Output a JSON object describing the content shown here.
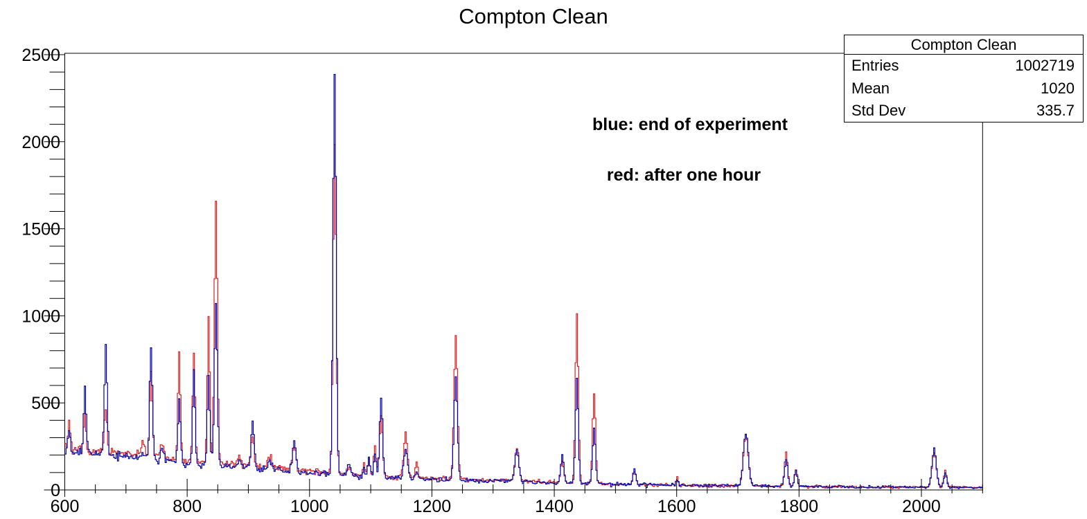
{
  "chart_data": {
    "type": "line",
    "title": "Compton Clean",
    "stats_box": {
      "title": "Compton Clean",
      "rows": [
        {
          "label": "Entries",
          "value": "1002719"
        },
        {
          "label": "Mean",
          "value": "1020"
        },
        {
          "label": "Std Dev",
          "value": "335.7"
        }
      ]
    },
    "annotations": [
      {
        "text": "blue: end of experiment"
      },
      {
        "text": "red: after one hour"
      }
    ],
    "xlim": [
      600,
      2100
    ],
    "ylim": [
      0,
      2500
    ],
    "x_major_ticks": [
      600,
      800,
      1000,
      1200,
      1400,
      1600,
      1800,
      2000
    ],
    "x_minor_step": 50,
    "y_major_ticks": [
      0,
      500,
      1000,
      1500,
      2000,
      2500
    ],
    "y_minor_step": 100,
    "grid": false,
    "legend_position": "none",
    "series": [
      {
        "name": "after one hour",
        "color": "#dd1f1f"
      },
      {
        "name": "end of experiment",
        "color": "#0000a8"
      }
    ],
    "bin_width": 2,
    "baseline_blue": [
      [
        600,
        220
      ],
      [
        640,
        206
      ],
      [
        680,
        196
      ],
      [
        720,
        186
      ],
      [
        760,
        174
      ],
      [
        800,
        152
      ],
      [
        840,
        143
      ],
      [
        880,
        135
      ],
      [
        920,
        122
      ],
      [
        960,
        108
      ],
      [
        1000,
        97
      ],
      [
        1050,
        88
      ],
      [
        1100,
        76
      ],
      [
        1150,
        68
      ],
      [
        1200,
        62
      ],
      [
        1250,
        56
      ],
      [
        1300,
        52
      ],
      [
        1350,
        47
      ],
      [
        1400,
        42
      ],
      [
        1450,
        38
      ],
      [
        1500,
        33
      ],
      [
        1550,
        29
      ],
      [
        1600,
        27
      ],
      [
        1650,
        25
      ],
      [
        1700,
        24
      ],
      [
        1750,
        22
      ],
      [
        1800,
        20
      ],
      [
        1850,
        18
      ],
      [
        1900,
        17
      ],
      [
        1950,
        16
      ],
      [
        2000,
        16
      ],
      [
        2050,
        15
      ],
      [
        2100,
        14
      ]
    ],
    "red_baseline_boost": {
      "max_factor": 1.09,
      "fade_start": 1150,
      "fade_end": 1450
    },
    "noise_model": "poisson",
    "peaks": [
      {
        "x": 607,
        "sigma": 2.0,
        "blue": 370,
        "red": 400
      },
      {
        "x": 633,
        "sigma": 2.0,
        "blue": 600,
        "red": 435
      },
      {
        "x": 667,
        "sigma": 2.2,
        "blue": 830,
        "red": 460
      },
      {
        "x": 727,
        "sigma": 3.0,
        "blue": 215,
        "red": 272
      },
      {
        "x": 741,
        "sigma": 2.2,
        "blue": 818,
        "red": 660
      },
      {
        "x": 759,
        "sigma": 3.0,
        "blue": 235,
        "red": 258
      },
      {
        "x": 787,
        "sigma": 2.0,
        "blue": 528,
        "red": 795
      },
      {
        "x": 811,
        "sigma": 2.0,
        "blue": 678,
        "red": 790
      },
      {
        "x": 835,
        "sigma": 2.0,
        "blue": 660,
        "red": 1007
      },
      {
        "x": 847,
        "sigma": 2.4,
        "blue": 1070,
        "red": 1655
      },
      {
        "x": 885,
        "sigma": 2.5,
        "blue": 170,
        "red": 195
      },
      {
        "x": 907,
        "sigma": 2.5,
        "blue": 395,
        "red": 308
      },
      {
        "x": 935,
        "sigma": 2.8,
        "blue": 168,
        "red": 200
      },
      {
        "x": 975,
        "sigma": 3.0,
        "blue": 275,
        "red": 258
      },
      {
        "x": 1041,
        "sigma": 2.5,
        "blue": 2420,
        "red": 1967
      },
      {
        "x": 1065,
        "sigma": 2.5,
        "blue": 150,
        "red": 140
      },
      {
        "x": 1089,
        "sigma": 1.8,
        "blue": 112,
        "red": 150
      },
      {
        "x": 1097,
        "sigma": 2.0,
        "blue": 185,
        "red": 180
      },
      {
        "x": 1107,
        "sigma": 2.0,
        "blue": 205,
        "red": 258
      },
      {
        "x": 1117,
        "sigma": 2.4,
        "blue": 535,
        "red": 425
      },
      {
        "x": 1157,
        "sigma": 3.0,
        "blue": 235,
        "red": 322
      },
      {
        "x": 1175,
        "sigma": 1.8,
        "blue": 100,
        "red": 160
      },
      {
        "x": 1239,
        "sigma": 2.8,
        "blue": 646,
        "red": 883
      },
      {
        "x": 1339,
        "sigma": 3.2,
        "blue": 235,
        "red": 240
      },
      {
        "x": 1413,
        "sigma": 2.5,
        "blue": 200,
        "red": 165
      },
      {
        "x": 1437,
        "sigma": 2.4,
        "blue": 640,
        "red": 1010
      },
      {
        "x": 1465,
        "sigma": 2.4,
        "blue": 350,
        "red": 556
      },
      {
        "x": 1531,
        "sigma": 2.5,
        "blue": 115,
        "red": 108
      },
      {
        "x": 1601,
        "sigma": 1.5,
        "blue": 55,
        "red": 80
      },
      {
        "x": 1713,
        "sigma": 4.0,
        "blue": 332,
        "red": 312
      },
      {
        "x": 1779,
        "sigma": 2.6,
        "blue": 175,
        "red": 215
      },
      {
        "x": 1795,
        "sigma": 2.2,
        "blue": 115,
        "red": 125
      },
      {
        "x": 2021,
        "sigma": 3.5,
        "blue": 232,
        "red": 215
      },
      {
        "x": 2039,
        "sigma": 2.5,
        "blue": 95,
        "red": 112
      }
    ]
  }
}
